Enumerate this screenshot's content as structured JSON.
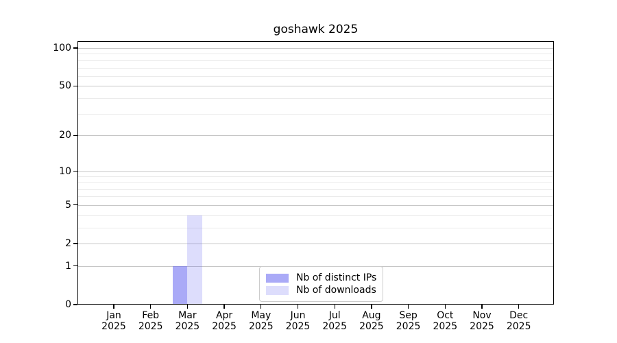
{
  "chart_data": {
    "type": "bar",
    "title": "goshawk 2025",
    "categories": [
      "Jan",
      "Feb",
      "Mar",
      "Apr",
      "May",
      "Jun",
      "Jul",
      "Aug",
      "Sep",
      "Oct",
      "Nov",
      "Dec"
    ],
    "x_tick_year": "2025",
    "series": [
      {
        "name": "Nb of distinct IPs",
        "color": "#6464f0",
        "alpha": 0.55,
        "solid_hex": "#acacf6",
        "values": [
          0,
          0,
          1,
          0,
          0,
          0,
          0,
          0,
          0,
          0,
          0,
          0
        ]
      },
      {
        "name": "Nb of downloads",
        "color": "#6464f0",
        "alpha": 0.22,
        "solid_hex": "#dcdcf8",
        "values": [
          0,
          0,
          4,
          0,
          0,
          0,
          0,
          0,
          0,
          0,
          0,
          0
        ]
      }
    ],
    "yscale": "log1p",
    "ylim": [
      0,
      113
    ],
    "y_major_ticks": [
      0,
      1,
      2,
      5,
      10,
      20,
      50,
      100
    ],
    "y_minor_gridlines": [
      3,
      4,
      6,
      7,
      8,
      9,
      30,
      40,
      60,
      70,
      80,
      90
    ],
    "grid": true,
    "legend": {
      "position": "lower center",
      "entries": [
        "Nb of distinct IPs",
        "Nb of downloads"
      ]
    }
  },
  "colors": {
    "background": "#ffffff",
    "axis": "#000000",
    "grid_major": "#c6c6c6",
    "grid_minor": "#ebebeb",
    "legend_border": "#cccccc",
    "bar_distinct_ips": "#acacf6",
    "bar_downloads": "#dcdcf8"
  }
}
